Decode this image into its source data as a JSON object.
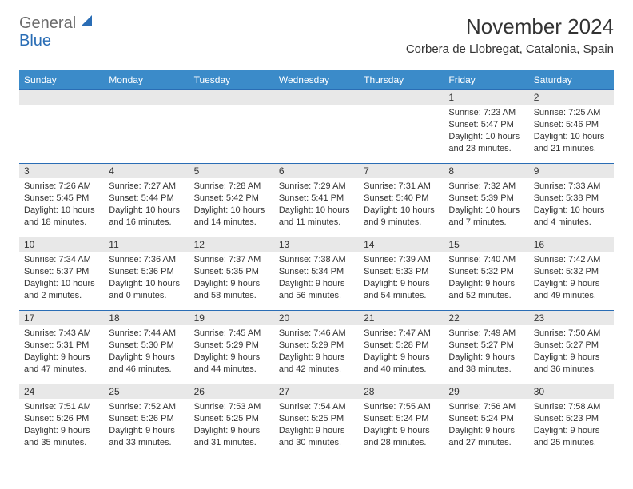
{
  "brand": {
    "word1": "General",
    "word2": "Blue"
  },
  "title": "November 2024",
  "location": "Corbera de Llobregat, Catalonia, Spain",
  "header_bg": "#3b8bc9",
  "header_text": "#ffffff",
  "border_color": "#2a6db5",
  "daynum_bg": "#e8e8e8",
  "text_color": "#333333",
  "weekdays": [
    "Sunday",
    "Monday",
    "Tuesday",
    "Wednesday",
    "Thursday",
    "Friday",
    "Saturday"
  ],
  "weeks": [
    [
      null,
      null,
      null,
      null,
      null,
      {
        "n": "1",
        "sr": "Sunrise: 7:23 AM",
        "ss": "Sunset: 5:47 PM",
        "dl": "Daylight: 10 hours and 23 minutes."
      },
      {
        "n": "2",
        "sr": "Sunrise: 7:25 AM",
        "ss": "Sunset: 5:46 PM",
        "dl": "Daylight: 10 hours and 21 minutes."
      }
    ],
    [
      {
        "n": "3",
        "sr": "Sunrise: 7:26 AM",
        "ss": "Sunset: 5:45 PM",
        "dl": "Daylight: 10 hours and 18 minutes."
      },
      {
        "n": "4",
        "sr": "Sunrise: 7:27 AM",
        "ss": "Sunset: 5:44 PM",
        "dl": "Daylight: 10 hours and 16 minutes."
      },
      {
        "n": "5",
        "sr": "Sunrise: 7:28 AM",
        "ss": "Sunset: 5:42 PM",
        "dl": "Daylight: 10 hours and 14 minutes."
      },
      {
        "n": "6",
        "sr": "Sunrise: 7:29 AM",
        "ss": "Sunset: 5:41 PM",
        "dl": "Daylight: 10 hours and 11 minutes."
      },
      {
        "n": "7",
        "sr": "Sunrise: 7:31 AM",
        "ss": "Sunset: 5:40 PM",
        "dl": "Daylight: 10 hours and 9 minutes."
      },
      {
        "n": "8",
        "sr": "Sunrise: 7:32 AM",
        "ss": "Sunset: 5:39 PM",
        "dl": "Daylight: 10 hours and 7 minutes."
      },
      {
        "n": "9",
        "sr": "Sunrise: 7:33 AM",
        "ss": "Sunset: 5:38 PM",
        "dl": "Daylight: 10 hours and 4 minutes."
      }
    ],
    [
      {
        "n": "10",
        "sr": "Sunrise: 7:34 AM",
        "ss": "Sunset: 5:37 PM",
        "dl": "Daylight: 10 hours and 2 minutes."
      },
      {
        "n": "11",
        "sr": "Sunrise: 7:36 AM",
        "ss": "Sunset: 5:36 PM",
        "dl": "Daylight: 10 hours and 0 minutes."
      },
      {
        "n": "12",
        "sr": "Sunrise: 7:37 AM",
        "ss": "Sunset: 5:35 PM",
        "dl": "Daylight: 9 hours and 58 minutes."
      },
      {
        "n": "13",
        "sr": "Sunrise: 7:38 AM",
        "ss": "Sunset: 5:34 PM",
        "dl": "Daylight: 9 hours and 56 minutes."
      },
      {
        "n": "14",
        "sr": "Sunrise: 7:39 AM",
        "ss": "Sunset: 5:33 PM",
        "dl": "Daylight: 9 hours and 54 minutes."
      },
      {
        "n": "15",
        "sr": "Sunrise: 7:40 AM",
        "ss": "Sunset: 5:32 PM",
        "dl": "Daylight: 9 hours and 52 minutes."
      },
      {
        "n": "16",
        "sr": "Sunrise: 7:42 AM",
        "ss": "Sunset: 5:32 PM",
        "dl": "Daylight: 9 hours and 49 minutes."
      }
    ],
    [
      {
        "n": "17",
        "sr": "Sunrise: 7:43 AM",
        "ss": "Sunset: 5:31 PM",
        "dl": "Daylight: 9 hours and 47 minutes."
      },
      {
        "n": "18",
        "sr": "Sunrise: 7:44 AM",
        "ss": "Sunset: 5:30 PM",
        "dl": "Daylight: 9 hours and 46 minutes."
      },
      {
        "n": "19",
        "sr": "Sunrise: 7:45 AM",
        "ss": "Sunset: 5:29 PM",
        "dl": "Daylight: 9 hours and 44 minutes."
      },
      {
        "n": "20",
        "sr": "Sunrise: 7:46 AM",
        "ss": "Sunset: 5:29 PM",
        "dl": "Daylight: 9 hours and 42 minutes."
      },
      {
        "n": "21",
        "sr": "Sunrise: 7:47 AM",
        "ss": "Sunset: 5:28 PM",
        "dl": "Daylight: 9 hours and 40 minutes."
      },
      {
        "n": "22",
        "sr": "Sunrise: 7:49 AM",
        "ss": "Sunset: 5:27 PM",
        "dl": "Daylight: 9 hours and 38 minutes."
      },
      {
        "n": "23",
        "sr": "Sunrise: 7:50 AM",
        "ss": "Sunset: 5:27 PM",
        "dl": "Daylight: 9 hours and 36 minutes."
      }
    ],
    [
      {
        "n": "24",
        "sr": "Sunrise: 7:51 AM",
        "ss": "Sunset: 5:26 PM",
        "dl": "Daylight: 9 hours and 35 minutes."
      },
      {
        "n": "25",
        "sr": "Sunrise: 7:52 AM",
        "ss": "Sunset: 5:26 PM",
        "dl": "Daylight: 9 hours and 33 minutes."
      },
      {
        "n": "26",
        "sr": "Sunrise: 7:53 AM",
        "ss": "Sunset: 5:25 PM",
        "dl": "Daylight: 9 hours and 31 minutes."
      },
      {
        "n": "27",
        "sr": "Sunrise: 7:54 AM",
        "ss": "Sunset: 5:25 PM",
        "dl": "Daylight: 9 hours and 30 minutes."
      },
      {
        "n": "28",
        "sr": "Sunrise: 7:55 AM",
        "ss": "Sunset: 5:24 PM",
        "dl": "Daylight: 9 hours and 28 minutes."
      },
      {
        "n": "29",
        "sr": "Sunrise: 7:56 AM",
        "ss": "Sunset: 5:24 PM",
        "dl": "Daylight: 9 hours and 27 minutes."
      },
      {
        "n": "30",
        "sr": "Sunrise: 7:58 AM",
        "ss": "Sunset: 5:23 PM",
        "dl": "Daylight: 9 hours and 25 minutes."
      }
    ]
  ]
}
